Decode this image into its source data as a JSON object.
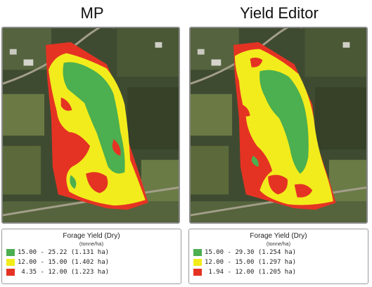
{
  "panels": [
    {
      "title": "MP",
      "legend": {
        "title": "Forage Yield (Dry)",
        "unit": "(tonne/ha)",
        "entries": [
          {
            "label": "15.00 - 25.22 (1.131 ha)",
            "color": "#4caf50"
          },
          {
            "label": "12.00 - 15.00 (1.402 ha)",
            "color": "#f2ec1c"
          },
          {
            "label": " 4.35 - 12.00 (1.223 ha)",
            "color": "#e53323"
          }
        ]
      }
    },
    {
      "title": "Yield Editor",
      "legend": {
        "title": "Forage Yield (Dry)",
        "unit": "(tonne/ha)",
        "entries": [
          {
            "label": "15.00 - 29.30 (1.254 ha)",
            "color": "#4caf50"
          },
          {
            "label": "12.00 - 15.00 (1.297 ha)",
            "color": "#f2ec1c"
          },
          {
            "label": " 1.94 - 12.00 (1.205 ha)",
            "color": "#e53323"
          }
        ]
      }
    }
  ],
  "colors": {
    "high": "#4caf50",
    "medium": "#f2ec1c",
    "low": "#e53323",
    "imagery-dark": "#3d4a30",
    "imagery-field": "#6f7f4a"
  }
}
